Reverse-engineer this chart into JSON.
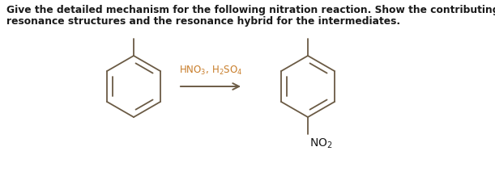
{
  "title_line1": "Give the detailed mechanism for the following nitration reaction. Show the contributing",
  "title_line2": "resonance structures and the resonance hybrid for the intermediates.",
  "text_color": "#1a1a1a",
  "line_color": "#6b5b45",
  "arrow_color": "#6b5b45",
  "reagent_color": "#c87d2a",
  "bg_color": "#ffffff",
  "title_fontsize": 8.8,
  "reagent_fontsize": 8.5,
  "no2_fontsize": 10
}
